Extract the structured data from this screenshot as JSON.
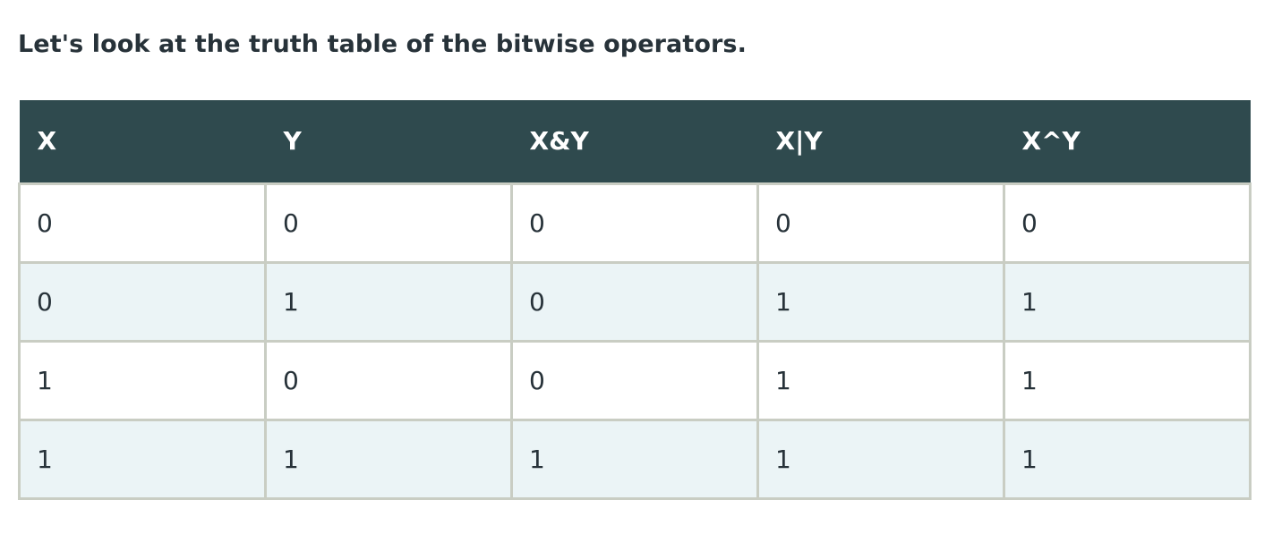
{
  "intro": {
    "text": "Let's look at the truth table of the bitwise operators."
  },
  "table": {
    "headers": [
      "X",
      "Y",
      "X&Y",
      "X|Y",
      "X^Y"
    ],
    "rows": [
      [
        "0",
        "0",
        "0",
        "0",
        "0"
      ],
      [
        "0",
        "1",
        "0",
        "1",
        "1"
      ],
      [
        "1",
        "0",
        "0",
        "1",
        "1"
      ],
      [
        "1",
        "1",
        "1",
        "1",
        "1"
      ]
    ]
  },
  "colors": {
    "header_bg": "#2f4a4e",
    "header_text": "#ffffff",
    "stripe_bg": "#ebf4f6",
    "border": "#c9cdc3",
    "body_text": "#273239"
  }
}
